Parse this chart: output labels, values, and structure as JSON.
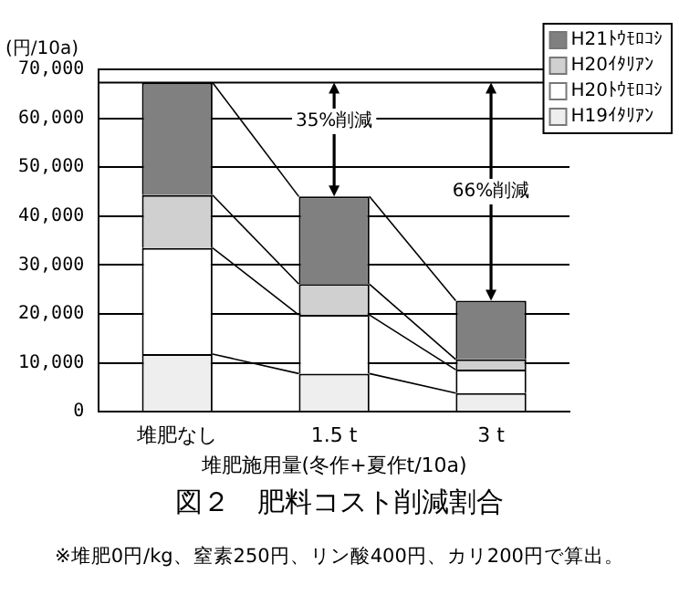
{
  "chart_data": {
    "type": "bar",
    "stacked": true,
    "title": "図２　肥料コスト削減割合",
    "xlabel": "堆肥施用量(冬作+夏作t/10a)",
    "ylabel": "(円/10a)",
    "categories": [
      "堆肥なし",
      "1.5 t",
      "3 t"
    ],
    "series": [
      {
        "name": "H19ｲﾀﾘｱﾝ",
        "color": "#eeeeee",
        "values": [
          11800,
          7800,
          3800
        ]
      },
      {
        "name": "H20ﾄｳﾓﾛｺｼ",
        "color": "#ffffff",
        "values": [
          21700,
          12000,
          4800
        ]
      },
      {
        "name": "H20ｲﾀﾘｱﾝ",
        "color": "#d0d0d0",
        "values": [
          10800,
          6300,
          2100
        ]
      },
      {
        "name": "H21ﾄｳﾓﾛｺｼ",
        "color": "#808080",
        "values": [
          23000,
          17900,
          12000
        ]
      }
    ],
    "ylim": [
      0,
      70000
    ],
    "yticks": [
      0,
      {
        "value": 10000,
        "label": "10,000"
      },
      {
        "value": 20000,
        "label": "20,000"
      },
      {
        "value": 30000,
        "label": "30,000"
      },
      {
        "value": 40000,
        "label": "40,000"
      },
      {
        "value": 50000,
        "label": "50,000"
      },
      {
        "value": 60000,
        "label": "60,000"
      },
      {
        "value": 70000,
        "label": "70,000"
      }
    ],
    "grid": "y",
    "legend": "top right",
    "ref_lines": [
      {
        "axis": "y",
        "value": 67300,
        "color": "#000000"
      }
    ],
    "annotations": [
      "35%削減",
      "66%削減",
      "※堆肥0円/kg、窒素250円、リン酸400円、カリ200円で算出。"
    ]
  }
}
